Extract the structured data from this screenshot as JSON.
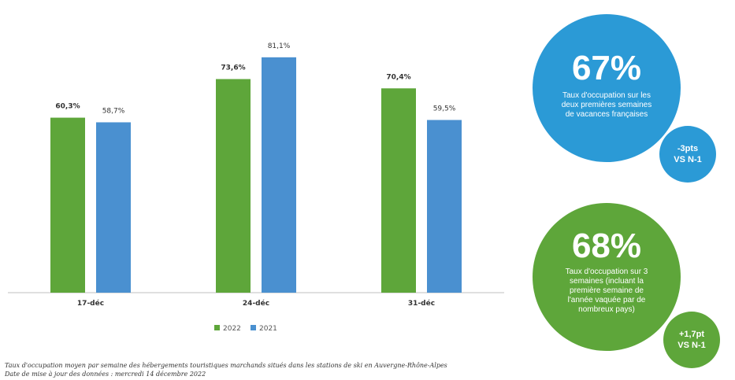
{
  "chart_data": {
    "type": "bar",
    "categories": [
      "17-déc",
      "24-déc",
      "31-déc"
    ],
    "series": [
      {
        "name": "2022",
        "values": [
          60.3,
          73.6,
          70.4
        ],
        "labels": [
          "60,3%",
          "73,6%",
          "70,4%"
        ],
        "color": "#5ea63a"
      },
      {
        "name": "2021",
        "values": [
          58.7,
          81.1,
          59.5
        ],
        "labels": [
          "58,7%",
          "81,1%",
          "59,5%"
        ],
        "color": "#4a90d0"
      }
    ],
    "ylim": [
      0,
      90
    ],
    "grid": false,
    "legend_position": "bottom"
  },
  "highlights": {
    "blue": {
      "percentage": "67%",
      "description": "Taux d'occupation sur les deux premières semaines de vacances françaises",
      "delta_line1": "-3pts",
      "delta_line2": "VS N-1",
      "color": "#2b9ad6"
    },
    "green": {
      "percentage": "68%",
      "description": "Taux d'occupation sur 3 semaines (incluant la première semaine de l'année vaquée par de nombreux pays)",
      "delta_line1": "+1,7pt",
      "delta_line2": "VS N-1",
      "color": "#5ea63a"
    }
  },
  "notes": {
    "source": "Taux d'occupation moyen par semaine des hébergements touristiques marchands situés dans les stations de ski en Auvergne-Rhône-Alpes",
    "update": "Date de mise à jour des données : mercredi 14 décembre 2022"
  }
}
